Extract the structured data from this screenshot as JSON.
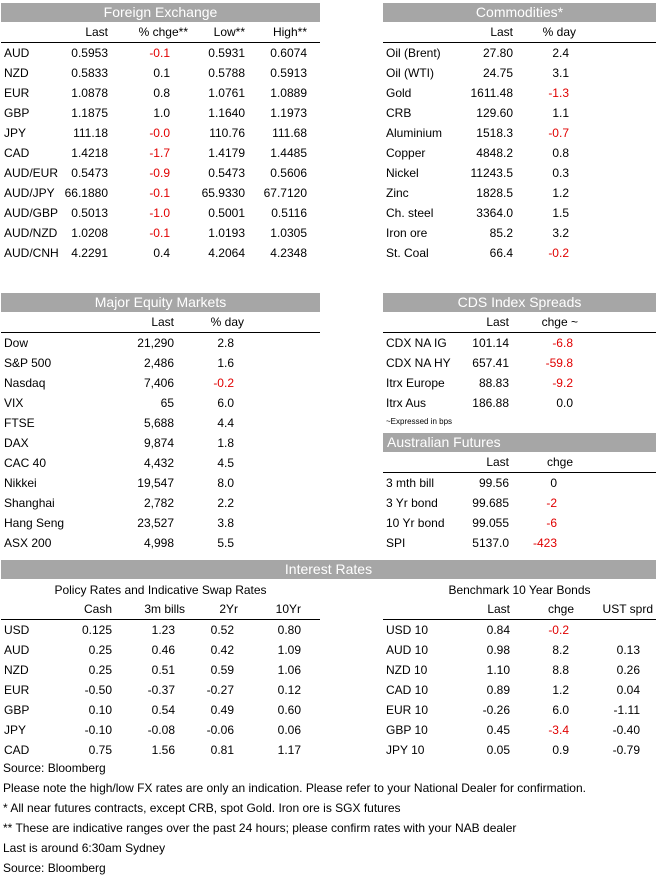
{
  "fx": {
    "title": "Foreign Exchange",
    "headers": [
      "Last",
      "% chge**",
      "Low**",
      "High**"
    ],
    "rows": [
      [
        "AUD",
        "0.5953",
        "-0.1",
        "0.5931",
        "0.6074"
      ],
      [
        "NZD",
        "0.5833",
        "0.1",
        "0.5788",
        "0.5913"
      ],
      [
        "EUR",
        "1.0878",
        "0.8",
        "1.0761",
        "1.0889"
      ],
      [
        "GBP",
        "1.1875",
        "1.0",
        "1.1640",
        "1.1973"
      ],
      [
        "JPY",
        "111.18",
        "-0.0",
        "110.76",
        "111.68"
      ],
      [
        "CAD",
        "1.4218",
        "-1.7",
        "1.4179",
        "1.4485"
      ],
      [
        "AUD/EUR",
        "0.5473",
        "-0.9",
        "0.5473",
        "0.5606"
      ],
      [
        "AUD/JPY",
        "66.1880",
        "-0.1",
        "65.9330",
        "67.7120"
      ],
      [
        "AUD/GBP",
        "0.5013",
        "-1.0",
        "0.5001",
        "0.5116"
      ],
      [
        "AUD/NZD",
        "1.0208",
        "-0.1",
        "1.0193",
        "1.0305"
      ],
      [
        "AUD/CNH",
        "4.2291",
        "0.4",
        "4.2064",
        "4.2348"
      ]
    ]
  },
  "commodities": {
    "title": "Commodities*",
    "headers": [
      "Last",
      "% day"
    ],
    "rows": [
      [
        "Oil (Brent)",
        "27.80",
        "2.4"
      ],
      [
        "Oil (WTI)",
        "24.75",
        "3.1"
      ],
      [
        "Gold",
        "1611.48",
        "-1.3"
      ],
      [
        "CRB",
        "129.60",
        "1.1"
      ],
      [
        "Aluminium",
        "1518.3",
        "-0.7"
      ],
      [
        "Copper",
        "4848.2",
        "0.8"
      ],
      [
        "Nickel",
        "11243.5",
        "0.3"
      ],
      [
        "Zinc",
        "1828.5",
        "1.2"
      ],
      [
        "Ch. steel",
        "3364.0",
        "1.5"
      ],
      [
        "Iron ore",
        "85.2",
        "3.2"
      ],
      [
        "St. Coal",
        "66.4",
        "-0.2"
      ]
    ]
  },
  "equity": {
    "title": "Major Equity Markets",
    "headers": [
      "Last",
      "% day"
    ],
    "rows": [
      [
        "Dow",
        "21,290",
        "2.8"
      ],
      [
        "S&P 500",
        "2,486",
        "1.6"
      ],
      [
        "Nasdaq",
        "7,406",
        "-0.2"
      ],
      [
        "VIX",
        "65",
        "6.0"
      ],
      [
        "FTSE",
        "5,688",
        "4.4"
      ],
      [
        "DAX",
        "9,874",
        "1.8"
      ],
      [
        "CAC 40",
        "4,432",
        "4.5"
      ],
      [
        "Nikkei",
        "19,547",
        "8.0"
      ],
      [
        "Shanghai",
        "2,782",
        "2.2"
      ],
      [
        "Hang Seng",
        "23,527",
        "3.8"
      ],
      [
        "ASX 200",
        "4,998",
        "5.5"
      ]
    ]
  },
  "cds": {
    "title": "CDS Index Spreads",
    "headers": [
      "Last",
      "chge ~"
    ],
    "rows": [
      [
        "CDX NA IG",
        "101.14",
        "-6.8"
      ],
      [
        "CDX NA HY",
        "657.41",
        "-59.8"
      ],
      [
        "Itrx Europe",
        "88.83",
        "-9.2"
      ],
      [
        "Itrx Aus",
        "186.88",
        "0.0"
      ]
    ],
    "note": "~Expressed in bps"
  },
  "futures": {
    "title": "Australian Futures",
    "headers": [
      "Last",
      "chge"
    ],
    "rows": [
      [
        "3 mth bill",
        "99.56",
        "0"
      ],
      [
        "3 Yr bond",
        "99.685",
        "-2"
      ],
      [
        "10 Yr bond",
        "99.055",
        "-6"
      ],
      [
        "SPI",
        "5137.0",
        "-423"
      ]
    ]
  },
  "rates": {
    "title": "Interest Rates",
    "policy": {
      "subtitle": "Policy Rates and Indicative Swap Rates",
      "headers": [
        "Cash",
        "3m bills",
        "2Yr",
        "10Yr"
      ],
      "rows": [
        [
          "USD",
          "0.125",
          "1.23",
          "0.52",
          "0.80"
        ],
        [
          "AUD",
          "0.25",
          "0.46",
          "0.42",
          "1.09"
        ],
        [
          "NZD",
          "0.25",
          "0.51",
          "0.59",
          "1.06"
        ],
        [
          "EUR",
          "-0.50",
          "-0.37",
          "-0.27",
          "0.12"
        ],
        [
          "GBP",
          "0.10",
          "0.54",
          "0.49",
          "0.60"
        ],
        [
          "JPY",
          "-0.10",
          "-0.08",
          "-0.06",
          "0.06"
        ],
        [
          "CAD",
          "0.75",
          "1.56",
          "0.81",
          "1.17"
        ]
      ]
    },
    "bonds": {
      "subtitle": "Benchmark 10 Year Bonds",
      "headers": [
        "Last",
        "chge",
        "UST sprd"
      ],
      "rows": [
        [
          "USD 10",
          "0.84",
          "-0.2",
          ""
        ],
        [
          "AUD 10",
          "0.98",
          "8.2",
          "0.13"
        ],
        [
          "NZD 10",
          "1.10",
          "8.8",
          "0.26"
        ],
        [
          "CAD 10",
          "0.89",
          "1.2",
          "0.04"
        ],
        [
          "EUR 10",
          "-0.26",
          "6.0",
          "-1.11"
        ],
        [
          "GBP 10",
          "0.45",
          "-3.4",
          "-0.40"
        ],
        [
          "JPY 10",
          "0.05",
          "0.9",
          "-0.79"
        ]
      ]
    }
  },
  "footnotes": [
    "Source: Bloomberg",
    "Please note the high/low FX rates are only an indication. Please refer to your National Dealer for confirmation.",
    "* All near futures contracts, except CRB, spot Gold.  Iron ore is SGX futures",
    "** These are indicative ranges over the past 24 hours; please confirm rates with your NAB dealer",
    "Last is around 6:30am Sydney",
    "Source: Bloomberg"
  ],
  "colors": {
    "banner": "#a6a6a6",
    "negative": "#e00000"
  }
}
